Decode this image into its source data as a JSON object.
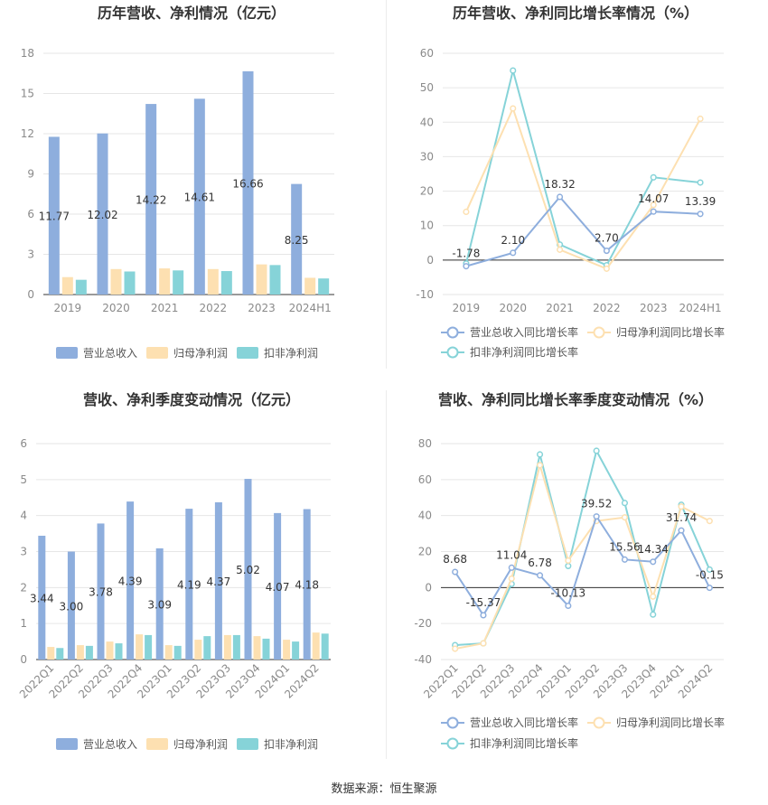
{
  "source_label": "数据来源：恒生聚源",
  "colors": {
    "revenue": "#8eaedd",
    "net_profit": "#fde0b1",
    "deducted_profit": "#86d3d8",
    "grid": "#e6e6e6",
    "axis_text": "#8a8a8a"
  },
  "chart_data": [
    {
      "type": "bar",
      "title": "历年营收、净利情况（亿元）",
      "categories": [
        "2019",
        "2020",
        "2021",
        "2022",
        "2023",
        "2024H1"
      ],
      "series": [
        {
          "name": "营业总收入",
          "values": [
            11.77,
            12.02,
            14.22,
            14.61,
            16.66,
            8.25
          ]
        },
        {
          "name": "归母净利润",
          "values": [
            1.3,
            1.9,
            1.95,
            1.9,
            2.25,
            1.25
          ]
        },
        {
          "name": "扣非净利润",
          "values": [
            1.1,
            1.72,
            1.8,
            1.75,
            2.2,
            1.2
          ]
        }
      ],
      "data_labels": [
        "11.77",
        "12.02",
        "14.22",
        "14.61",
        "16.66",
        "8.25"
      ],
      "yticks": [
        "0",
        "3",
        "6",
        "9",
        "12",
        "15",
        "18"
      ],
      "ylim": [
        0,
        18
      ],
      "legend": "bottom"
    },
    {
      "type": "line",
      "title": "历年营收、净利同比增长率情况（%）",
      "categories": [
        "2019",
        "2020",
        "2021",
        "2022",
        "2023",
        "2024H1"
      ],
      "series": [
        {
          "name": "营业总收入同比增长率",
          "values": [
            -1.78,
            2.1,
            18.32,
            2.7,
            14.07,
            13.39
          ]
        },
        {
          "name": "归母净利润同比增长率",
          "values": [
            14,
            44,
            3,
            -2.5,
            16,
            41
          ]
        },
        {
          "name": "扣非净利润同比增长率",
          "values": [
            -1,
            55,
            4.5,
            -1.5,
            24,
            22.5
          ]
        }
      ],
      "data_labels": [
        "-1.78",
        "2.10",
        "18.32",
        "2.70",
        "14.07",
        "13.39"
      ],
      "yticks": [
        "-10",
        "0",
        "10",
        "20",
        "30",
        "40",
        "50",
        "60"
      ],
      "ylim": [
        -10,
        60
      ],
      "legend": "bottom"
    },
    {
      "type": "bar",
      "title": "营收、净利季度变动情况（亿元）",
      "categories": [
        "2022Q1",
        "2022Q2",
        "2022Q3",
        "2022Q4",
        "2023Q1",
        "2023Q2",
        "2023Q3",
        "2023Q4",
        "2024Q1",
        "2024Q2"
      ],
      "series": [
        {
          "name": "营业总收入",
          "values": [
            3.44,
            3.0,
            3.78,
            4.39,
            3.09,
            4.19,
            4.37,
            5.02,
            4.07,
            4.18
          ]
        },
        {
          "name": "归母净利润",
          "values": [
            0.35,
            0.4,
            0.5,
            0.7,
            0.4,
            0.55,
            0.68,
            0.65,
            0.55,
            0.75
          ]
        },
        {
          "name": "扣非净利润",
          "values": [
            0.32,
            0.38,
            0.45,
            0.68,
            0.38,
            0.65,
            0.68,
            0.58,
            0.5,
            0.72
          ]
        }
      ],
      "data_labels": [
        "3.44",
        "3.00",
        "3.78",
        "4.39",
        "3.09",
        "4.19",
        "4.37",
        "5.02",
        "4.07",
        "4.18"
      ],
      "yticks": [
        "0",
        "1",
        "2",
        "3",
        "4",
        "5",
        "6"
      ],
      "ylim": [
        0,
        6
      ],
      "legend": "bottom"
    },
    {
      "type": "line",
      "title": "营收、净利同比增长率季度变动情况（%）",
      "categories": [
        "2022Q1",
        "2022Q2",
        "2022Q3",
        "2022Q4",
        "2023Q1",
        "2023Q2",
        "2023Q3",
        "2023Q4",
        "2024Q1",
        "2024Q2"
      ],
      "series": [
        {
          "name": "营业总收入同比增长率",
          "values": [
            8.68,
            -15.37,
            11.04,
            6.78,
            -10.13,
            39.52,
            15.56,
            14.34,
            31.74,
            -0.15
          ]
        },
        {
          "name": "归母净利润同比增长率",
          "values": [
            -34,
            -31,
            5,
            68,
            15,
            37,
            39,
            -5,
            45,
            37
          ]
        },
        {
          "name": "扣非净利润同比增长率",
          "values": [
            -32,
            -31,
            2,
            74,
            12,
            76,
            47,
            -15,
            46,
            10
          ]
        }
      ],
      "data_labels": [
        "8.68",
        "-15.37",
        "11.04",
        "6.78",
        "-10.13",
        "39.52",
        "15.56",
        "14.34",
        "31.74",
        "-0.15"
      ],
      "yticks": [
        "-40",
        "-20",
        "0",
        "20",
        "40",
        "60",
        "80"
      ],
      "ylim": [
        -40,
        80
      ],
      "legend": "bottom"
    }
  ]
}
